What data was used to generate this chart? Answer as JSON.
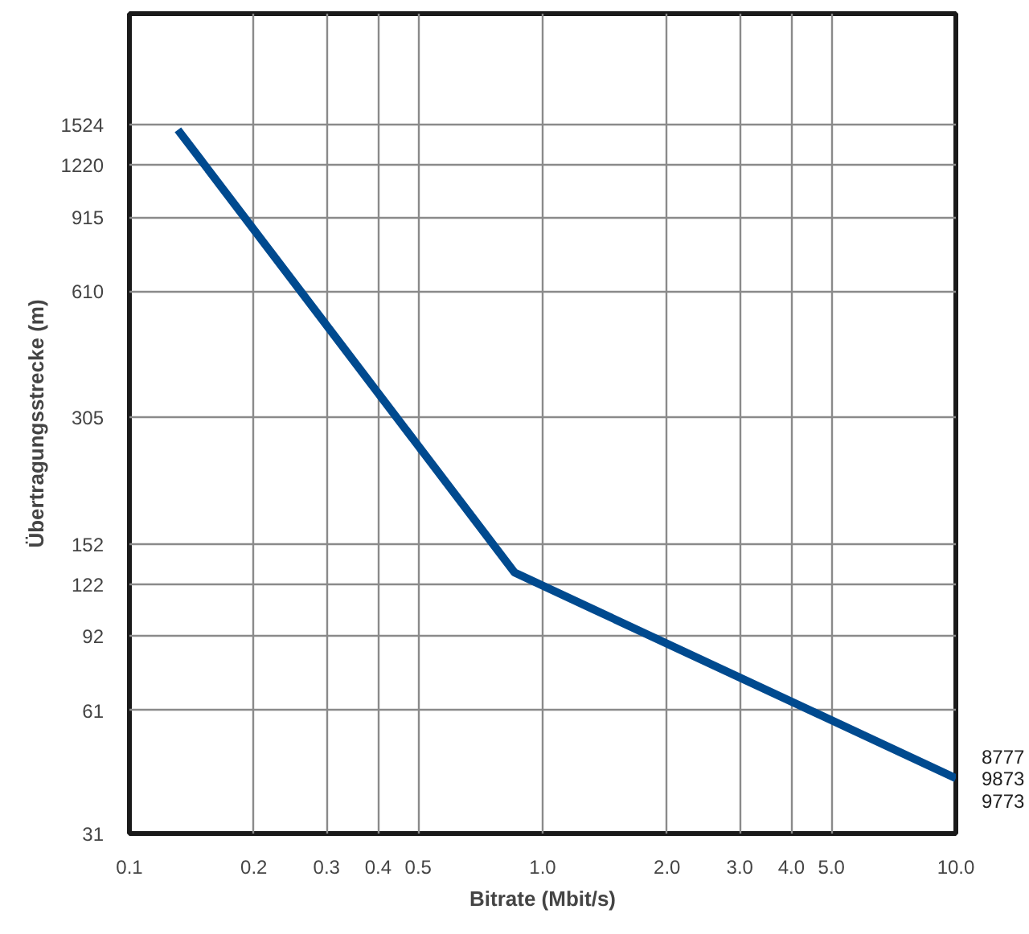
{
  "chart_data": {
    "type": "line",
    "xlabel": "Bitrate (Mbit/s)",
    "ylabel": "Übertragungsstrecke (m)",
    "x": [
      0.131,
      0.855,
      10.0
    ],
    "series": [
      {
        "color": "#004a8f",
        "values": [
          1480,
          130,
          42
        ]
      }
    ],
    "log": "xy",
    "xlim": [
      0.1,
      10.0
    ],
    "ylim": [
      31,
      2800
    ],
    "xticks": [
      0.1,
      0.2,
      0.3,
      0.4,
      0.5,
      {
        "value": 1,
        "label": "1.0"
      },
      {
        "value": 2,
        "label": "2.0"
      },
      {
        "value": 3,
        "label": "3.0"
      },
      {
        "value": 4,
        "label": "4.0"
      },
      {
        "value": 5,
        "label": "5.0"
      },
      {
        "value": 10,
        "label": "10.0"
      }
    ],
    "yticks": [
      31,
      61,
      92,
      122,
      152,
      305,
      610,
      915,
      1220,
      1524
    ],
    "grid": true,
    "marker": "none",
    "line_style": "solid",
    "annotations": [
      "8777",
      "9873",
      "9773"
    ]
  }
}
